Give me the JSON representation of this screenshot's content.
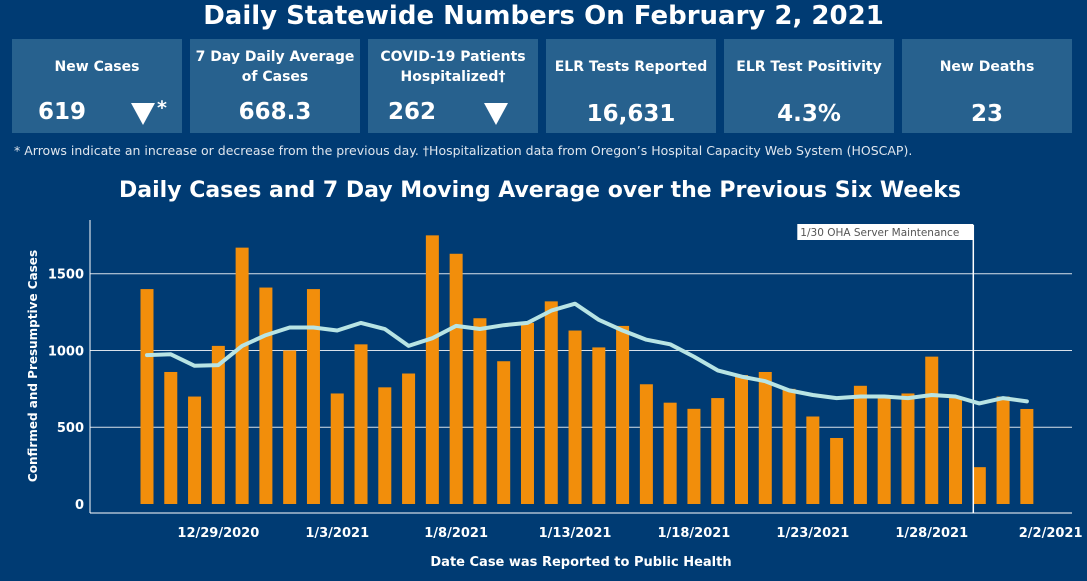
{
  "title": "Daily Statewide Numbers On February 2, 2021",
  "kpis": [
    {
      "label": "New Cases",
      "value": "619",
      "arrow": "down",
      "star": "*"
    },
    {
      "label": "7 Day Daily Average of Cases",
      "value": "668.3"
    },
    {
      "label": "COVID-19 Patients Hospitalized†",
      "value": "262",
      "arrow": "down"
    },
    {
      "label": "ELR Tests Reported",
      "value": "16,631"
    },
    {
      "label": "ELR Test Positivity",
      "value": "4.3%"
    },
    {
      "label": "New Deaths",
      "value": "23"
    }
  ],
  "footnote": "* Arrows indicate an increase or decrease from the previous day. †Hospitalization data from Oregon’s Hospital Capacity Web System (HOSCAP).",
  "colors": {
    "background": "#003B73",
    "card": "#27618E",
    "bar": "#F28E0B",
    "line": "#B8E4E4"
  },
  "chart_data": {
    "type": "bar",
    "title": "Daily Cases and 7 Day Moving Average over the Previous Six Weeks",
    "xlabel": "Date Case was Reported to Public Health",
    "ylabel": "Confirmed and Presumptive Cases",
    "ylim": [
      0,
      1850
    ],
    "yticks": [
      0,
      500,
      1000,
      1500
    ],
    "xticks": [
      "12/29/2020",
      "1/3/2021",
      "1/8/2021",
      "1/13/2021",
      "1/18/2021",
      "1/23/2021",
      "1/28/2021",
      "2/2/2021"
    ],
    "grid": true,
    "categories": [
      "12/26/2020",
      "12/27/2020",
      "12/28/2020",
      "12/29/2020",
      "12/30/2020",
      "12/31/2020",
      "1/1/2021",
      "1/2/2021",
      "1/3/2021",
      "1/4/2021",
      "1/5/2021",
      "1/6/2021",
      "1/7/2021",
      "1/8/2021",
      "1/9/2021",
      "1/10/2021",
      "1/11/2021",
      "1/12/2021",
      "1/13/2021",
      "1/14/2021",
      "1/15/2021",
      "1/16/2021",
      "1/17/2021",
      "1/18/2021",
      "1/19/2021",
      "1/20/2021",
      "1/21/2021",
      "1/22/2021",
      "1/23/2021",
      "1/24/2021",
      "1/25/2021",
      "1/26/2021",
      "1/27/2021",
      "1/28/2021",
      "1/29/2021",
      "1/30/2021",
      "1/31/2021",
      "2/1/2021",
      "2/2/2021"
    ],
    "series": [
      {
        "type": "bar",
        "values": [
          1400,
          860,
          700,
          1030,
          1670,
          1410,
          1000,
          1400,
          720,
          1040,
          760,
          850,
          1750,
          1630,
          1210,
          930,
          1180,
          1320,
          1130,
          1020,
          1160,
          780,
          660,
          620,
          690,
          840,
          860,
          750,
          570,
          430,
          770,
          710,
          720,
          960,
          700,
          240,
          700,
          619,
          null
        ]
      },
      {
        "type": "line",
        "values": [
          970,
          975,
          900,
          905,
          1030,
          1100,
          1150,
          1150,
          1130,
          1180,
          1140,
          1030,
          1080,
          1160,
          1140,
          1165,
          1180,
          1260,
          1305,
          1200,
          1130,
          1070,
          1040,
          960,
          870,
          830,
          800,
          740,
          710,
          690,
          700,
          700,
          690,
          710,
          700,
          655,
          690,
          668.3,
          null
        ]
      }
    ],
    "annotations": [
      {
        "date": "1/30/2021",
        "text": "1/30 OHA Server Maintenance"
      }
    ]
  }
}
